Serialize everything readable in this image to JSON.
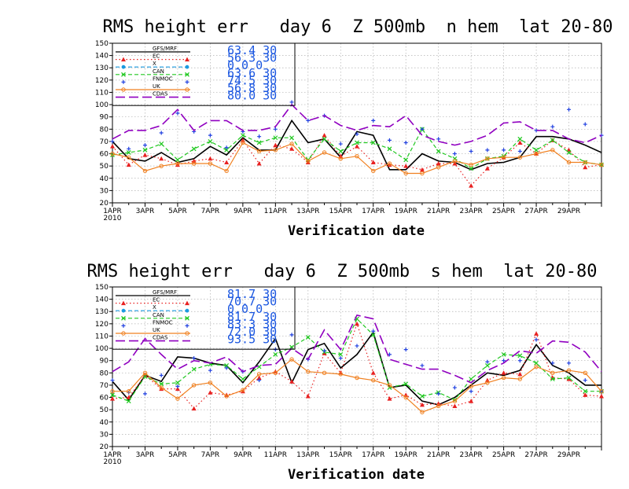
{
  "chart_data": [
    {
      "type": "line",
      "title": "RMS height err   day 6  Z 500mb  n hem  lat 20-80",
      "xlabel": "Verification date",
      "ylabel": "",
      "ylim": [
        20,
        150
      ],
      "yticks": [
        20,
        30,
        40,
        50,
        60,
        70,
        80,
        90,
        100,
        110,
        120,
        130,
        140,
        150
      ],
      "grid": true,
      "legend_position": "top-left",
      "x_tick_labels": [
        "1APR\n2010",
        "3APR",
        "5APR",
        "7APR",
        "9APR",
        "11APR",
        "13APR",
        "15APR",
        "17APR",
        "19APR",
        "21APR",
        "23APR",
        "25APR",
        "27APR",
        "29APR"
      ],
      "series": [
        {
          "name": "GFS/MRF",
          "color": "#000000",
          "style": "solid",
          "marker": "none",
          "legend_value": "63.4",
          "legend_count": "30",
          "values": [
            70,
            56,
            54,
            61,
            53,
            56,
            66,
            59,
            73,
            63,
            63,
            87,
            69,
            72,
            57,
            78,
            75,
            47,
            47,
            60,
            54,
            53,
            47,
            52,
            53,
            57,
            74,
            74,
            72,
            67,
            61
          ]
        },
        {
          "name": "EC",
          "color": "#e82020",
          "style": "dotted",
          "marker": "triangle",
          "legend_value": "56.3",
          "legend_count": "30",
          "values": [
            66,
            51,
            59,
            56,
            51,
            54,
            56,
            53,
            71,
            52,
            67,
            64,
            53,
            75,
            58,
            66,
            53,
            51,
            50,
            47,
            52,
            52,
            34,
            48,
            57,
            69,
            60,
            71,
            63,
            49,
            51
          ]
        },
        {
          "name": "X",
          "color": "#1a9ae0",
          "style": "dashed",
          "marker": "circle",
          "legend_value": "0.0",
          "legend_count": "0",
          "values": []
        },
        {
          "name": "CAN",
          "color": "#20c820",
          "style": "dashed",
          "marker": "x",
          "legend_value": "63.6",
          "legend_count": "30",
          "values": [
            59,
            61,
            63,
            68,
            55,
            64,
            70,
            63,
            75,
            69,
            73,
            73,
            55,
            72,
            62,
            69,
            69,
            64,
            55,
            80,
            62,
            56,
            48,
            56,
            58,
            72,
            63,
            71,
            61,
            53,
            51
          ]
        },
        {
          "name": "FNMOC",
          "color": "#2040e0",
          "style": "none",
          "marker": "plus",
          "legend_value": "74.5",
          "legend_count": "30",
          "values": [
            70,
            64,
            67,
            77,
            93,
            78,
            75,
            65,
            78,
            74,
            80,
            102,
            87,
            91,
            68,
            76,
            87,
            71,
            69,
            80,
            72,
            60,
            62,
            63,
            63,
            62,
            79,
            82,
            96,
            84,
            75
          ]
        },
        {
          "name": "UK",
          "color": "#f08020",
          "style": "solid",
          "marker": "circle-open",
          "legend_value": "56.8",
          "legend_count": "30",
          "values": [
            60,
            57,
            46,
            50,
            52,
            52,
            52,
            46,
            69,
            62,
            63,
            68,
            54,
            61,
            56,
            58,
            46,
            52,
            44,
            44,
            49,
            54,
            51,
            56,
            57,
            57,
            60,
            63,
            53,
            53,
            51
          ]
        },
        {
          "name": "CDAS",
          "color": "#9000c0",
          "style": "longdash",
          "marker": "none",
          "legend_value": "80.0",
          "legend_count": "30",
          "values": [
            72,
            79,
            79,
            83,
            96,
            79,
            87,
            87,
            79,
            79,
            82,
            100,
            87,
            91,
            83,
            79,
            83,
            82,
            91,
            75,
            70,
            67,
            70,
            75,
            85,
            86,
            79,
            79,
            72,
            69,
            75
          ]
        }
      ]
    },
    {
      "type": "line",
      "title": "RMS height err   day 6  Z 500mb  s hem  lat 20-80",
      "xlabel": "Verification date",
      "ylabel": "",
      "ylim": [
        20,
        150
      ],
      "yticks": [
        20,
        30,
        40,
        50,
        60,
        70,
        80,
        90,
        100,
        110,
        120,
        130,
        140,
        150
      ],
      "grid": true,
      "legend_position": "top-left",
      "x_tick_labels": [
        "1APR\n2010",
        "3APR",
        "5APR",
        "7APR",
        "9APR",
        "11APR",
        "13APR",
        "15APR",
        "17APR",
        "19APR",
        "21APR",
        "23APR",
        "25APR",
        "27APR",
        "29APR"
      ],
      "series": [
        {
          "name": "GFS/MRF",
          "color": "#000000",
          "style": "solid",
          "marker": "none",
          "legend_value": "81.7",
          "legend_count": "30",
          "values": [
            73,
            58,
            78,
            73,
            93,
            92,
            88,
            86,
            72,
            89,
            108,
            72,
            99,
            104,
            84,
            95,
            113,
            68,
            70,
            57,
            54,
            60,
            70,
            80,
            78,
            82,
            103,
            86,
            80,
            70,
            70
          ]
        },
        {
          "name": "EC",
          "color": "#e82020",
          "style": "dotted",
          "marker": "triangle",
          "legend_value": "70.7",
          "legend_count": "30",
          "values": [
            59,
            60,
            78,
            67,
            67,
            51,
            64,
            62,
            65,
            76,
            81,
            73,
            61,
            96,
            80,
            120,
            80,
            59,
            62,
            54,
            55,
            53,
            57,
            74,
            80,
            79,
            112,
            76,
            75,
            62,
            61
          ]
        },
        {
          "name": "X",
          "color": "#1a9ae0",
          "style": "dashed",
          "marker": "circle",
          "legend_value": "0.0",
          "legend_count": "0",
          "values": []
        },
        {
          "name": "CAN",
          "color": "#20c820",
          "style": "dashed",
          "marker": "x",
          "legend_value": "81.7",
          "legend_count": "30",
          "values": [
            62,
            57,
            77,
            71,
            72,
            83,
            87,
            86,
            75,
            85,
            95,
            101,
            109,
            97,
            95,
            124,
            111,
            68,
            71,
            61,
            64,
            58,
            75,
            86,
            95,
            94,
            88,
            75,
            76,
            65,
            65
          ]
        },
        {
          "name": "FNMOC",
          "color": "#2040e0",
          "style": "none",
          "marker": "plus",
          "legend_value": "83.3",
          "legend_count": "30",
          "values": [
            74,
            64,
            63,
            78,
            69,
            92,
            82,
            84,
            81,
            74,
            99,
            111,
            91,
            98,
            92,
            102,
            114,
            95,
            99,
            86,
            63,
            68,
            65,
            89,
            90,
            90,
            107,
            88,
            88,
            74,
            65
          ]
        },
        {
          "name": "UK",
          "color": "#f08020",
          "style": "solid",
          "marker": "circle-open",
          "legend_value": "72.0",
          "legend_count": "30",
          "values": [
            65,
            65,
            80,
            68,
            59,
            70,
            72,
            61,
            66,
            79,
            80,
            91,
            81,
            80,
            79,
            76,
            74,
            70,
            60,
            48,
            53,
            57,
            69,
            72,
            76,
            75,
            85,
            80,
            82,
            80,
            65
          ]
        },
        {
          "name": "CDAS",
          "color": "#9000c0",
          "style": "longdash",
          "marker": "none",
          "legend_value": "93.5",
          "legend_count": "30",
          "values": [
            81,
            89,
            108,
            95,
            83,
            90,
            88,
            93,
            81,
            86,
            87,
            100,
            91,
            115,
            99,
            127,
            124,
            91,
            87,
            83,
            83,
            78,
            72,
            82,
            88,
            98,
            96,
            106,
            105,
            97,
            81
          ]
        }
      ]
    }
  ]
}
